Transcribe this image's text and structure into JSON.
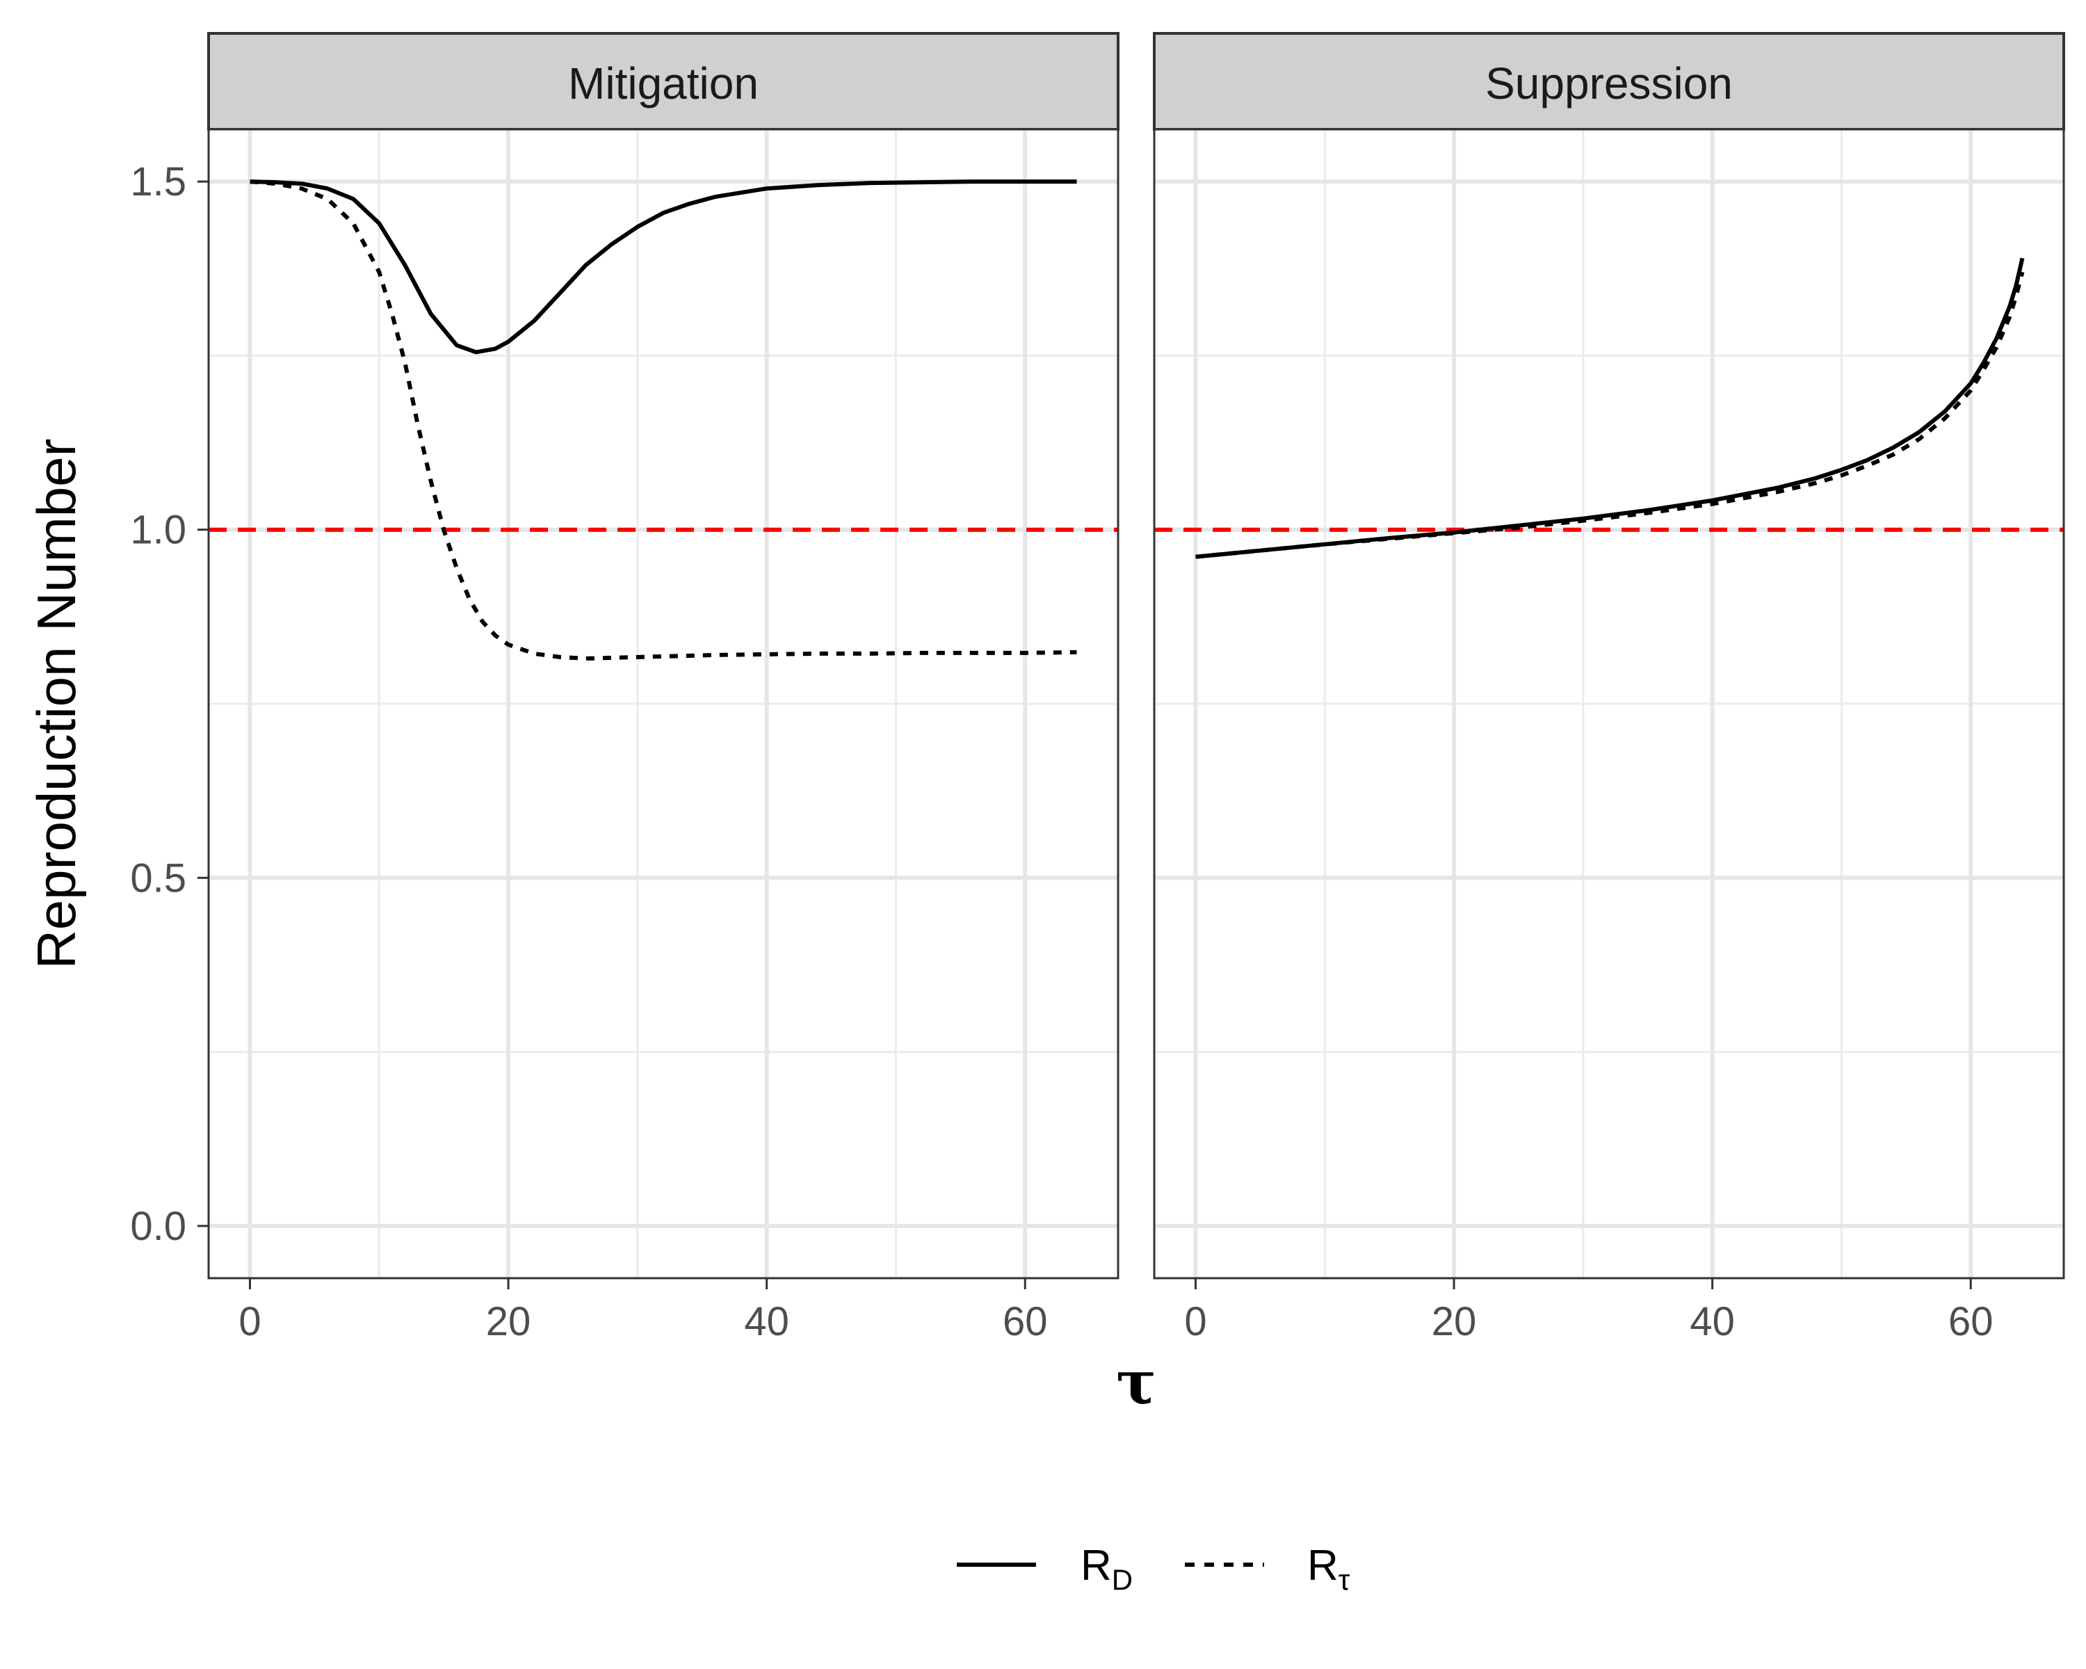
{
  "chart_data": {
    "type": "line",
    "ylabel": "Reproduction Number",
    "xlabel": "τ",
    "xlim": [
      -3.2,
      67.2
    ],
    "ylim": [
      -0.075,
      1.575
    ],
    "x_ticks": [
      0,
      20,
      40,
      60
    ],
    "x_tick_labels": [
      "0",
      "20",
      "40",
      "60"
    ],
    "y_ticks": [
      0.0,
      0.5,
      1.0,
      1.5
    ],
    "y_tick_labels": [
      "0.0",
      "0.5",
      "1.0",
      "1.5"
    ],
    "y_minor_ticks": [
      0.25,
      0.75,
      1.25
    ],
    "x_minor_ticks": [
      10,
      30,
      50
    ],
    "grid": true,
    "reference_line": {
      "y": 1.0,
      "color": "#ff0000",
      "style": "dashed"
    },
    "legend": {
      "position": "bottom",
      "entries": [
        {
          "base": "R",
          "sub": "D",
          "style": "solid"
        },
        {
          "base": "R",
          "sub": "τ",
          "style": "dotted"
        }
      ]
    },
    "panels": [
      {
        "title": "Mitigation",
        "series": [
          {
            "key": "R_D",
            "style": "solid",
            "x": [
              0,
              2,
              4,
              6,
              8,
              10,
              12,
              14,
              16,
              17.5,
              19,
              20,
              22,
              24,
              26,
              28,
              30,
              32,
              34,
              36,
              40,
              44,
              48,
              52,
              56,
              60,
              64
            ],
            "y": [
              1.5,
              1.499,
              1.497,
              1.49,
              1.475,
              1.44,
              1.38,
              1.31,
              1.265,
              1.255,
              1.26,
              1.27,
              1.3,
              1.34,
              1.38,
              1.41,
              1.435,
              1.455,
              1.468,
              1.478,
              1.49,
              1.495,
              1.498,
              1.499,
              1.5,
              1.5,
              1.5
            ]
          },
          {
            "key": "R_tau",
            "style": "dotted",
            "x": [
              0,
              2,
              4,
              6,
              8,
              10,
              11,
              12,
              13,
              14,
              15,
              16,
              17,
              18,
              19,
              20,
              22,
              24,
              26,
              28,
              32,
              36,
              40,
              44,
              48,
              52,
              56,
              60,
              64
            ],
            "y": [
              1.5,
              1.497,
              1.49,
              1.475,
              1.44,
              1.37,
              1.31,
              1.24,
              1.15,
              1.07,
              1.0,
              0.945,
              0.9,
              0.868,
              0.848,
              0.835,
              0.822,
              0.817,
              0.815,
              0.816,
              0.818,
              0.82,
              0.821,
              0.822,
              0.822,
              0.823,
              0.823,
              0.823,
              0.824
            ]
          }
        ]
      },
      {
        "title": "Suppression",
        "series": [
          {
            "key": "R_D",
            "style": "solid",
            "x": [
              0,
              5,
              10,
              15,
              20,
              25,
              30,
              35,
              40,
              45,
              48,
              50,
              52,
              54,
              56,
              58,
              60,
              61,
              62,
              63,
              63.5,
              64
            ],
            "y": [
              0.961,
              0.97,
              0.979,
              0.988,
              0.996,
              1.006,
              1.016,
              1.028,
              1.042,
              1.06,
              1.074,
              1.086,
              1.1,
              1.118,
              1.14,
              1.17,
              1.21,
              1.24,
              1.275,
              1.32,
              1.35,
              1.39
            ]
          },
          {
            "key": "R_tau",
            "style": "dotted",
            "x": [
              0,
              5,
              10,
              15,
              20,
              25,
              30,
              35,
              40,
              45,
              48,
              50,
              52,
              54,
              56,
              58,
              60,
              61,
              62,
              63,
              63.5,
              64
            ],
            "y": [
              0.961,
              0.97,
              0.979,
              0.987,
              0.995,
              1.003,
              1.013,
              1.024,
              1.037,
              1.054,
              1.067,
              1.078,
              1.092,
              1.108,
              1.13,
              1.16,
              1.2,
              1.23,
              1.262,
              1.305,
              1.335,
              1.37
            ]
          }
        ]
      }
    ]
  }
}
